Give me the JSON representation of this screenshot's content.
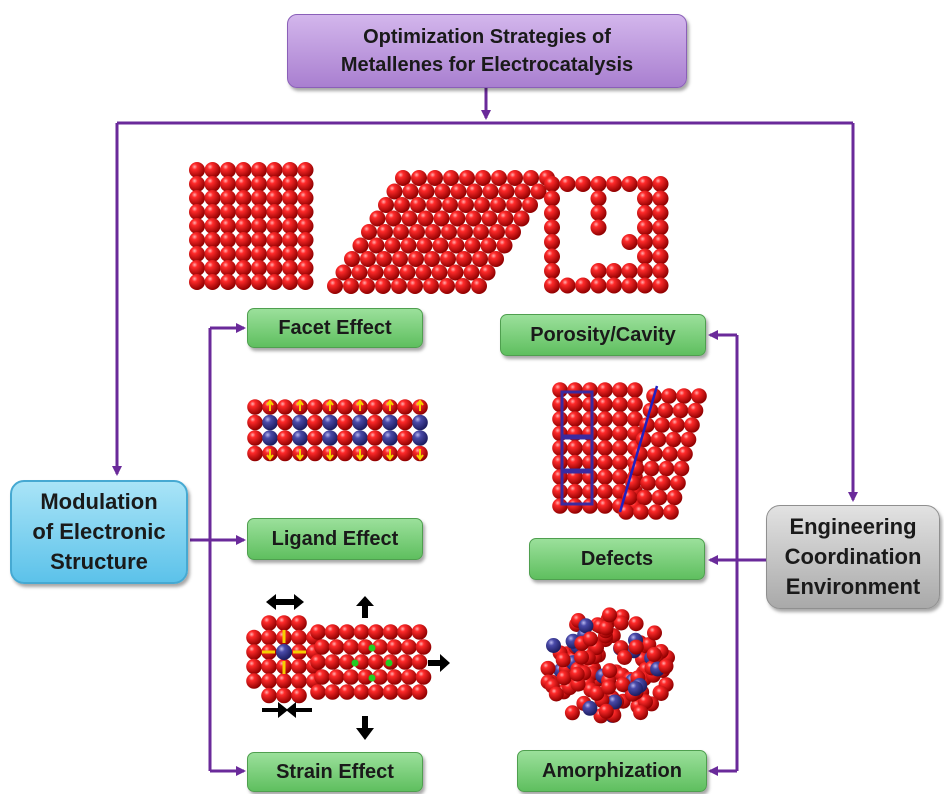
{
  "title": {
    "line1": "Optimization Strategies of",
    "line2": "Metallenes for Electrocatalysis"
  },
  "left_category": {
    "line1": "Modulation",
    "line2": "of Electronic",
    "line3": "Structure"
  },
  "right_category": {
    "line1": "Engineering",
    "line2": "Coordination",
    "line3": "Environment"
  },
  "strategies": {
    "facet_effect": "Facet Effect",
    "ligand_effect": "Ligand Effect",
    "strain_effect": "Strain Effect",
    "porosity_cavity": "Porosity/Cavity",
    "defects": "Defects",
    "amorphization": "Amorphization"
  },
  "colors": {
    "connector": "#6a2a9a",
    "atom_host": "#e00000",
    "atom_guest": "#3a3a8c",
    "arrow_black": "#000000",
    "arrow_yellow": "#f5d000",
    "strain_site": "#22cc22",
    "defect_outline": "#3a2aa0"
  }
}
